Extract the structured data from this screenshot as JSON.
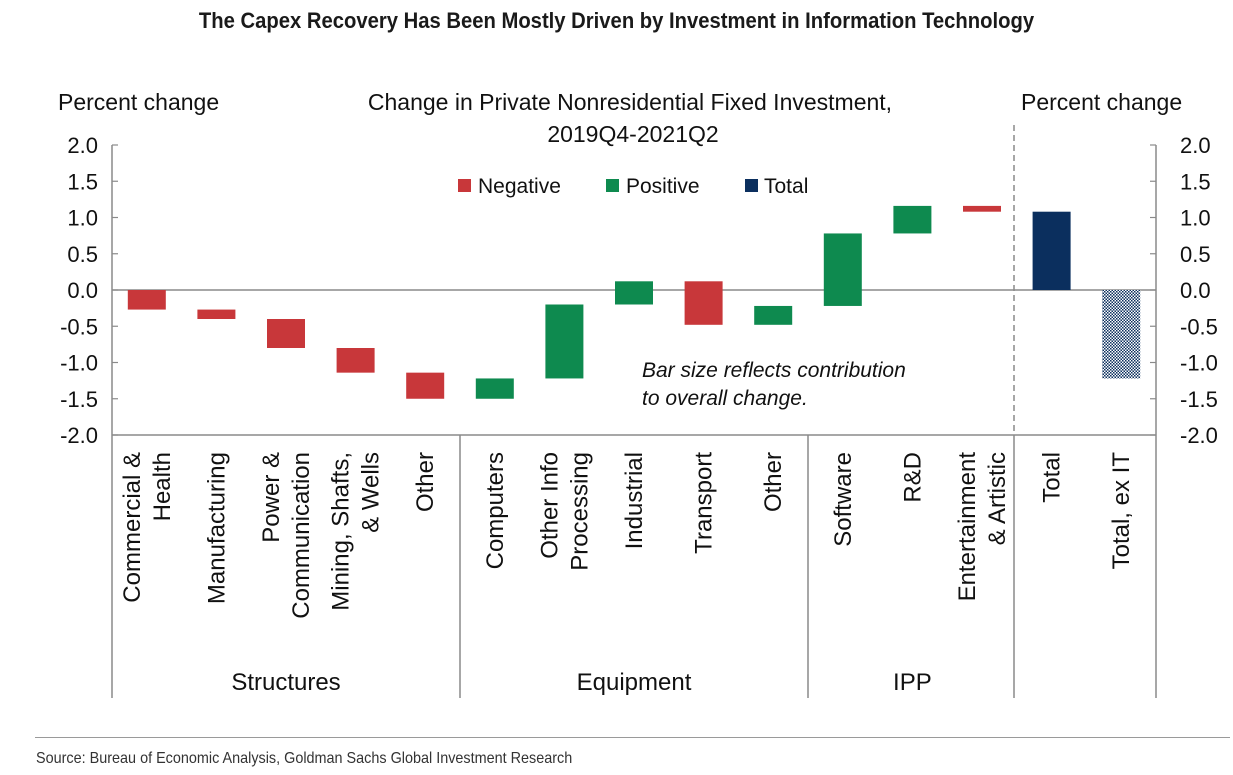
{
  "chart_data": {
    "type": "bar",
    "subtype": "waterfall",
    "title": "The Capex Recovery Has Been Mostly Driven by Investment in Information Technology",
    "subtitle": [
      "Change in Private Nonresidential Fixed Investment,",
      "2019Q4-2021Q2"
    ],
    "ylabel_left": "Percent change",
    "ylabel_right": "Percent change",
    "ylim": [
      -2.0,
      2.0
    ],
    "yticks": [
      "2.0",
      "1.5",
      "1.0",
      "0.5",
      "0.0",
      "-0.5",
      "-1.0",
      "-1.5",
      "-2.0"
    ],
    "ytick_values": [
      2.0,
      1.5,
      1.0,
      0.5,
      0.0,
      -0.5,
      -1.0,
      -1.5,
      -2.0
    ],
    "legend": {
      "placement": "top-center",
      "items": [
        {
          "label": "Negative",
          "color": "#c8373a"
        },
        {
          "label": "Positive",
          "color": "#0e8a4f"
        },
        {
          "label": "Total",
          "color": "#0b2f5e"
        }
      ]
    },
    "colors": {
      "negative": "#c8373a",
      "positive": "#0e8a4f",
      "total": "#0b2f5e",
      "hatched": "#0b2f5e"
    },
    "annotation": [
      "Bar size reflects contribution",
      "to overall change."
    ],
    "groups": [
      {
        "label": "Structures",
        "count": 5
      },
      {
        "label": "Equipment",
        "count": 5
      },
      {
        "label": "IPP",
        "count": 3
      }
    ],
    "bars": [
      {
        "label": [
          "Commercial &",
          "Health"
        ],
        "start": 0.0,
        "end": -0.27,
        "kind": "negative"
      },
      {
        "label": [
          "Manufacturing"
        ],
        "start": -0.27,
        "end": -0.4,
        "kind": "negative"
      },
      {
        "label": [
          "Power &",
          "Communication"
        ],
        "start": -0.4,
        "end": -0.8,
        "kind": "negative"
      },
      {
        "label": [
          "Mining, Shafts,",
          "& Wells"
        ],
        "start": -0.8,
        "end": -1.14,
        "kind": "negative"
      },
      {
        "label": [
          "Other"
        ],
        "start": -1.14,
        "end": -1.5,
        "kind": "negative"
      },
      {
        "label": [
          "Computers"
        ],
        "start": -1.5,
        "end": -1.22,
        "kind": "positive"
      },
      {
        "label": [
          "Other Info",
          "Processing"
        ],
        "start": -1.22,
        "end": -0.2,
        "kind": "positive"
      },
      {
        "label": [
          "Industrial"
        ],
        "start": -0.2,
        "end": 0.12,
        "kind": "positive"
      },
      {
        "label": [
          "Transport"
        ],
        "start": 0.12,
        "end": -0.48,
        "kind": "negative"
      },
      {
        "label": [
          "Other"
        ],
        "start": -0.48,
        "end": -0.22,
        "kind": "positive"
      },
      {
        "label": [
          "Software"
        ],
        "start": -0.22,
        "end": 0.78,
        "kind": "positive"
      },
      {
        "label": [
          "R&D"
        ],
        "start": 0.78,
        "end": 1.16,
        "kind": "positive"
      },
      {
        "label": [
          "Entertainment",
          "& Artistic"
        ],
        "start": 1.16,
        "end": 1.08,
        "kind": "negative"
      }
    ],
    "totals": [
      {
        "label": [
          "Total"
        ],
        "start": 0.0,
        "end": 1.08,
        "kind": "total"
      },
      {
        "label": [
          "Total, ex IT"
        ],
        "start": 0.0,
        "end": -1.22,
        "kind": "hatched"
      }
    ]
  },
  "source": "Source: Bureau of Economic Analysis, Goldman Sachs Global Investment Research"
}
